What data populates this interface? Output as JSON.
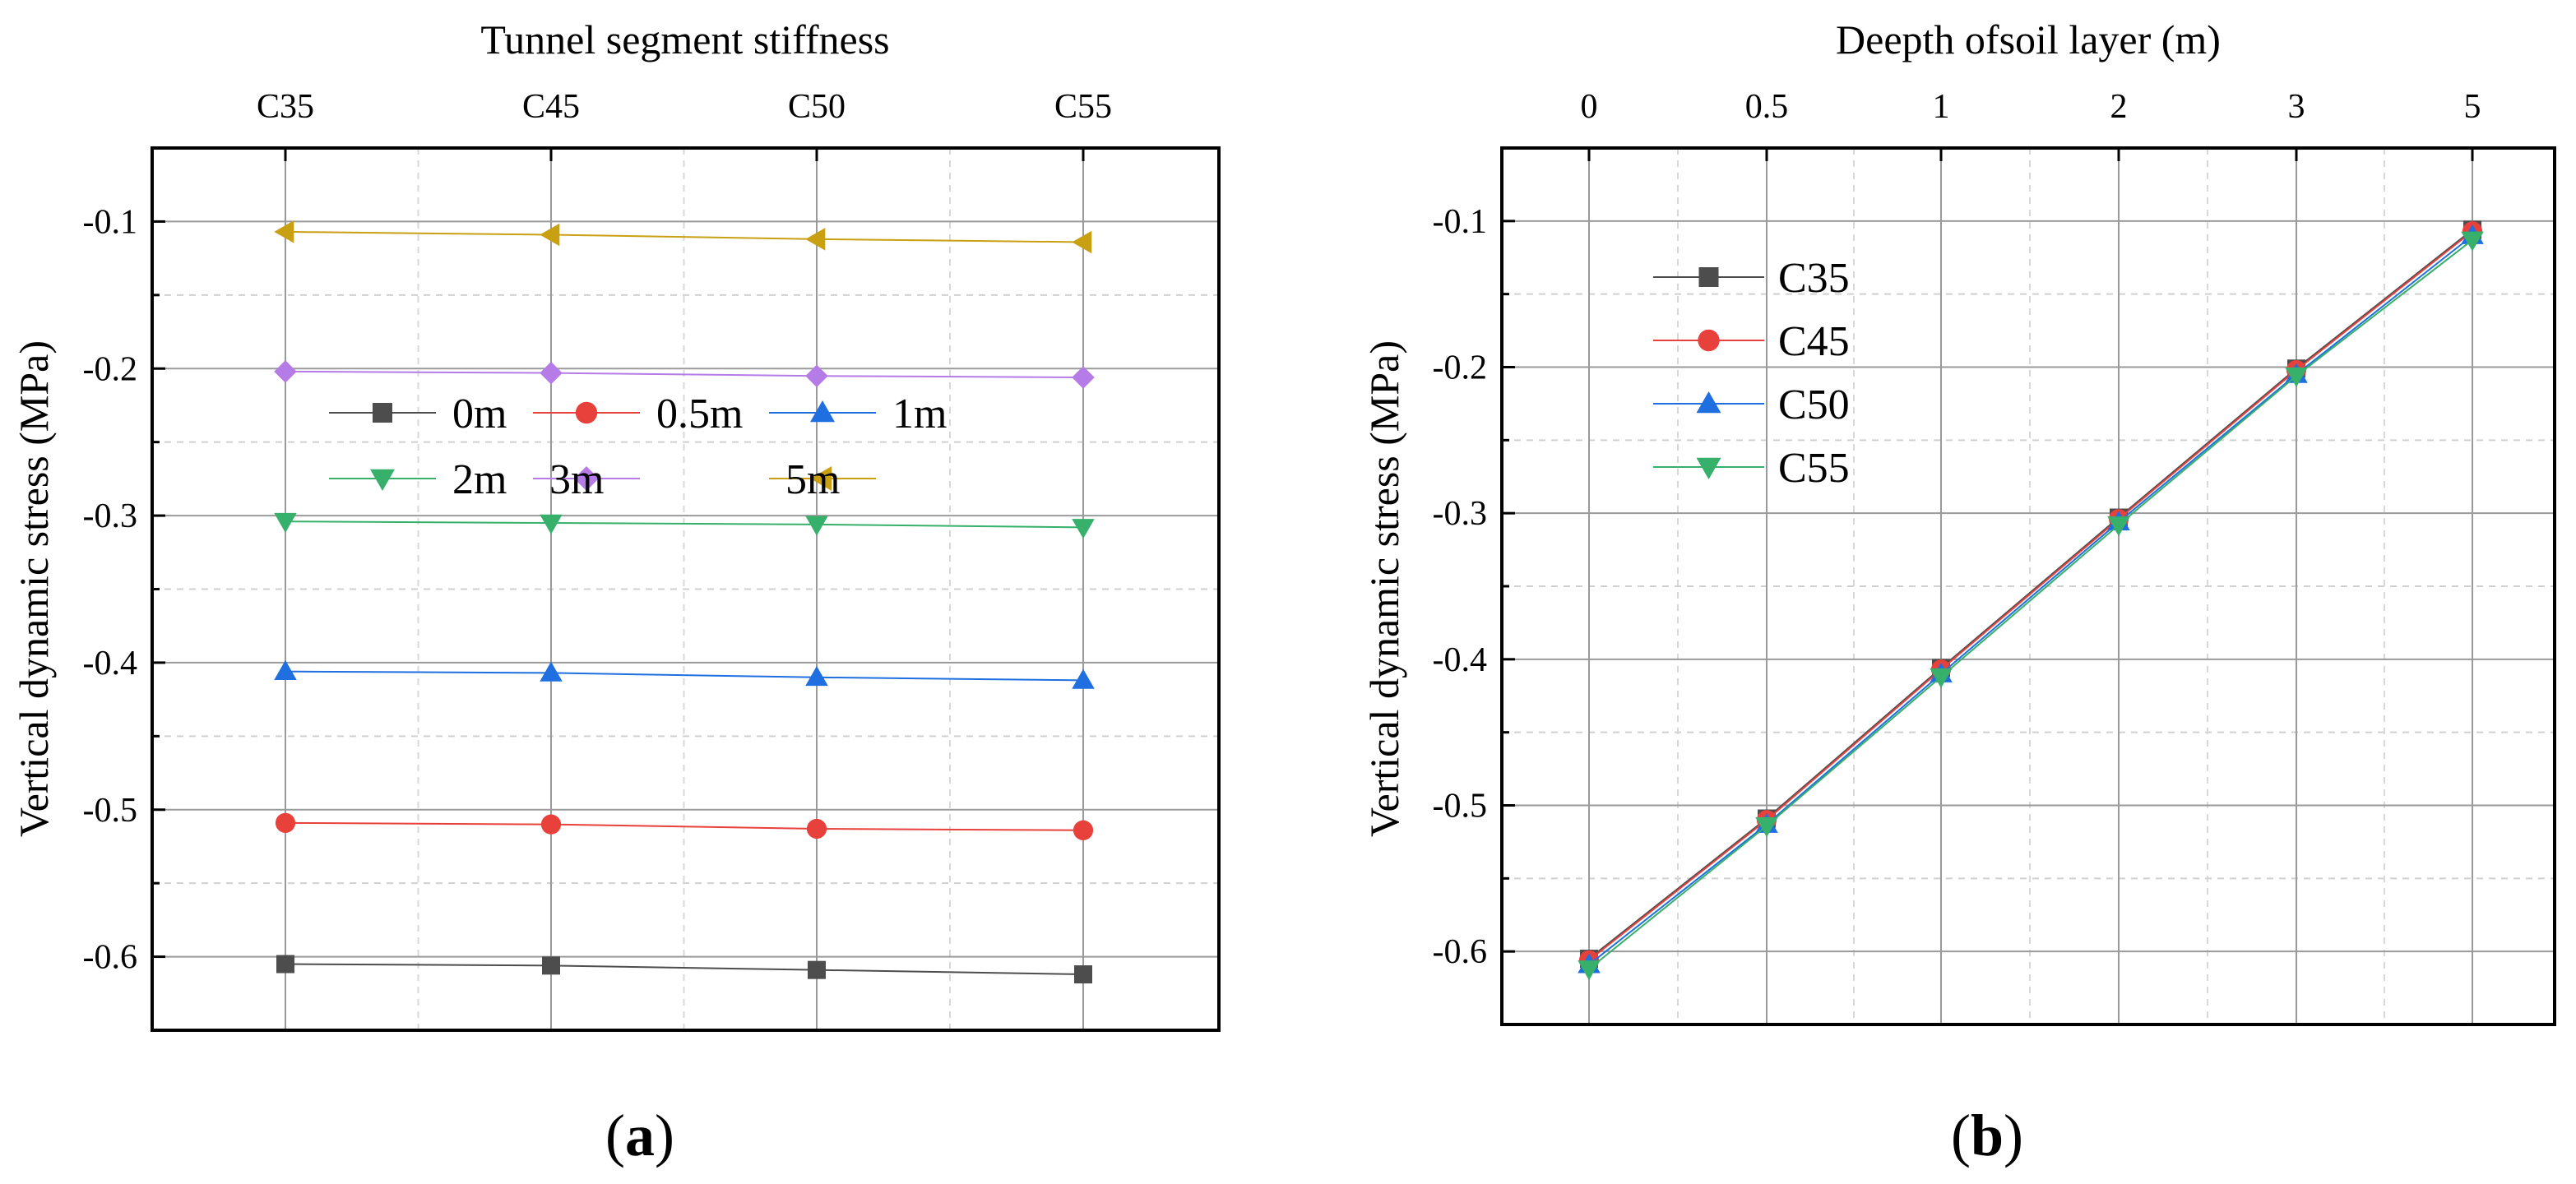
{
  "chart_data": [
    {
      "type": "line",
      "panel_label": "(a)",
      "panel_label_parts": {
        "open": "(",
        "letter": "a",
        "close": ")"
      },
      "title": "Tunnel segment stiffness",
      "xlabel": "Tunnel segment stiffness",
      "ylabel": "Vertical dynamic stress (MPa)",
      "x_axis_position": "top",
      "categories": [
        "C35",
        "C45",
        "C50",
        "C55"
      ],
      "ylim": [
        -0.65,
        -0.05
      ],
      "y_ticks": [
        -0.6,
        -0.5,
        -0.4,
        -0.3,
        -0.2,
        -0.1
      ],
      "y_tick_labels": [
        "-0.6",
        "-0.5",
        "-0.4",
        "-0.3",
        "-0.2",
        "-0.1"
      ],
      "grid": true,
      "legend_position": "upper-left, two rows of three",
      "series": [
        {
          "name": "0m",
          "marker": "square",
          "color": "#4d4d4d",
          "values": [
            -0.605,
            -0.606,
            -0.609,
            -0.612
          ]
        },
        {
          "name": "0.5m",
          "marker": "circle",
          "color": "#e8403a",
          "values": [
            -0.509,
            -0.51,
            -0.513,
            -0.514
          ]
        },
        {
          "name": "1m",
          "marker": "triangle-up",
          "color": "#1f6fe0",
          "values": [
            -0.406,
            -0.407,
            -0.41,
            -0.412
          ]
        },
        {
          "name": "2m",
          "marker": "triangle-down",
          "color": "#36b06b",
          "values": [
            -0.304,
            -0.305,
            -0.306,
            -0.308
          ]
        },
        {
          "name": "3m",
          "marker": "diamond",
          "color": "#b57be6",
          "values": [
            -0.202,
            -0.203,
            -0.205,
            -0.206
          ]
        },
        {
          "name": "5m",
          "marker": "triangle-left",
          "color": "#c8a012",
          "values": [
            -0.107,
            -0.109,
            -0.112,
            -0.114
          ]
        }
      ]
    },
    {
      "type": "line",
      "panel_label": "(b)",
      "panel_label_parts": {
        "open": "(",
        "letter": "b",
        "close": ")"
      },
      "title": "Deepth ofsoil layer (m)",
      "xlabel": "Deepth ofsoil layer (m)",
      "ylabel": "Vertical dynamic stress (MPa)",
      "x_axis_position": "top",
      "categories": [
        "0",
        "0.5",
        "1",
        "2",
        "3",
        "5"
      ],
      "ylim": [
        -0.65,
        -0.05
      ],
      "y_ticks": [
        -0.6,
        -0.5,
        -0.4,
        -0.3,
        -0.2,
        -0.1
      ],
      "y_tick_labels": [
        "-0.6",
        "-0.5",
        "-0.4",
        "-0.3",
        "-0.2",
        "-0.1"
      ],
      "grid": true,
      "legend_position": "upper-left, single column",
      "series": [
        {
          "name": "C35",
          "marker": "square",
          "color": "#4d4d4d",
          "values": [
            -0.605,
            -0.509,
            -0.406,
            -0.303,
            -0.201,
            -0.106
          ]
        },
        {
          "name": "C45",
          "marker": "circle",
          "color": "#e8403a",
          "values": [
            -0.606,
            -0.51,
            -0.407,
            -0.304,
            -0.202,
            -0.107
          ]
        },
        {
          "name": "C50",
          "marker": "triangle-up",
          "color": "#1f6fe0",
          "values": [
            -0.609,
            -0.513,
            -0.41,
            -0.306,
            -0.205,
            -0.11
          ]
        },
        {
          "name": "C55",
          "marker": "triangle-down",
          "color": "#36b06b",
          "values": [
            -0.612,
            -0.514,
            -0.412,
            -0.308,
            -0.206,
            -0.113
          ]
        }
      ]
    }
  ]
}
